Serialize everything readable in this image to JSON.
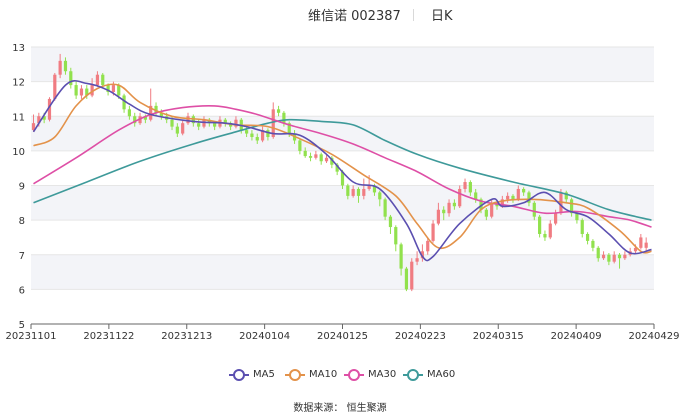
{
  "title": {
    "main": "维信诺 002387",
    "period": "日K"
  },
  "source": "数据来源：   恒生聚源",
  "colors": {
    "up": "#f07c82",
    "down": "#91e14d",
    "MA5": "#5b4fb0",
    "MA10": "#e3924a",
    "MA30": "#de4fa6",
    "MA60": "#3e9a9a",
    "band": "#f3f4f8",
    "grid": "#e6e6e6",
    "axis": "#666666"
  },
  "chart_data": {
    "type": "candlestick",
    "x_ticks": [
      "20231101",
      "20231122",
      "20231213",
      "20240104",
      "20240125",
      "20240223",
      "20240315",
      "20240409",
      "20240429"
    ],
    "y_ticks": [
      5,
      6,
      7,
      8,
      9,
      10,
      11,
      12,
      13
    ],
    "ylim": [
      5,
      13
    ],
    "n_days": 116,
    "legend": [
      "MA5",
      "MA10",
      "MA30",
      "MA60"
    ],
    "candles": [
      [
        10.6,
        10.8,
        11.05,
        10.55
      ],
      [
        10.8,
        11.0,
        11.1,
        10.7
      ],
      [
        11.0,
        10.9,
        11.1,
        10.8
      ],
      [
        10.9,
        11.5,
        11.55,
        10.85
      ],
      [
        11.5,
        12.2,
        12.25,
        11.45
      ],
      [
        12.2,
        12.6,
        12.8,
        12.1
      ],
      [
        12.6,
        12.3,
        12.7,
        12.2
      ],
      [
        12.3,
        11.9,
        12.4,
        11.8
      ],
      [
        11.9,
        11.6,
        12.0,
        11.5
      ],
      [
        11.6,
        11.8,
        11.9,
        11.5
      ],
      [
        11.8,
        11.6,
        11.9,
        11.5
      ],
      [
        11.6,
        11.9,
        12.1,
        11.55
      ],
      [
        11.9,
        12.2,
        12.3,
        11.85
      ],
      [
        12.2,
        11.9,
        12.25,
        11.8
      ],
      [
        11.9,
        11.7,
        11.95,
        11.6
      ],
      [
        11.7,
        11.9,
        12.0,
        11.6
      ],
      [
        11.9,
        11.6,
        11.95,
        11.5
      ],
      [
        11.6,
        11.2,
        11.65,
        11.1
      ],
      [
        11.2,
        11.0,
        11.3,
        10.9
      ],
      [
        11.0,
        10.8,
        11.1,
        10.7
      ],
      [
        10.8,
        11.0,
        11.1,
        10.75
      ],
      [
        11.0,
        10.9,
        11.05,
        10.8
      ],
      [
        10.9,
        11.3,
        11.8,
        10.85
      ],
      [
        11.3,
        11.1,
        11.4,
        11.0
      ],
      [
        11.1,
        11.0,
        11.2,
        10.9
      ],
      [
        11.0,
        10.9,
        11.1,
        10.8
      ],
      [
        10.9,
        10.7,
        11.0,
        10.6
      ],
      [
        10.7,
        10.5,
        10.8,
        10.4
      ],
      [
        10.5,
        10.8,
        10.9,
        10.45
      ],
      [
        10.8,
        11.0,
        11.1,
        10.75
      ],
      [
        11.0,
        10.8,
        11.05,
        10.7
      ],
      [
        10.8,
        10.7,
        10.9,
        10.6
      ],
      [
        10.7,
        10.9,
        11.0,
        10.65
      ],
      [
        10.9,
        10.8,
        10.95,
        10.7
      ],
      [
        10.8,
        10.7,
        10.85,
        10.6
      ],
      [
        10.7,
        10.9,
        11.0,
        10.65
      ],
      [
        10.9,
        10.8,
        10.95,
        10.7
      ],
      [
        10.8,
        10.7,
        10.85,
        10.6
      ],
      [
        10.7,
        10.9,
        11.0,
        10.65
      ],
      [
        10.9,
        10.6,
        10.95,
        10.5
      ],
      [
        10.6,
        10.5,
        10.7,
        10.4
      ],
      [
        10.5,
        10.4,
        10.6,
        10.3
      ],
      [
        10.4,
        10.3,
        10.5,
        10.2
      ],
      [
        10.3,
        10.6,
        10.7,
        10.25
      ],
      [
        10.6,
        10.4,
        10.65,
        10.3
      ],
      [
        10.4,
        11.2,
        11.4,
        10.35
      ],
      [
        11.2,
        11.1,
        11.3,
        11.0
      ],
      [
        11.1,
        10.8,
        11.15,
        10.7
      ],
      [
        10.8,
        10.5,
        10.85,
        10.4
      ],
      [
        10.5,
        10.3,
        10.6,
        10.2
      ],
      [
        10.3,
        10.0,
        10.35,
        9.9
      ],
      [
        10.0,
        9.85,
        10.1,
        9.8
      ],
      [
        9.85,
        9.8,
        9.95,
        9.7
      ],
      [
        9.8,
        9.9,
        10.0,
        9.75
      ],
      [
        9.9,
        9.7,
        9.95,
        9.6
      ],
      [
        9.7,
        9.8,
        9.9,
        9.65
      ],
      [
        9.8,
        9.6,
        9.85,
        9.5
      ],
      [
        9.6,
        9.4,
        9.65,
        9.3
      ],
      [
        9.4,
        9.0,
        9.45,
        8.9
      ],
      [
        9.0,
        8.7,
        9.05,
        8.6
      ],
      [
        8.7,
        8.9,
        9.0,
        8.65
      ],
      [
        8.9,
        8.7,
        8.95,
        8.5
      ],
      [
        8.7,
        8.9,
        9.2,
        8.6
      ],
      [
        8.9,
        9.0,
        9.3,
        8.85
      ],
      [
        9.0,
        8.8,
        9.05,
        8.7
      ],
      [
        8.8,
        8.6,
        8.85,
        8.4
      ],
      [
        8.6,
        8.1,
        8.65,
        8.0
      ],
      [
        8.1,
        7.8,
        8.15,
        7.6
      ],
      [
        7.8,
        7.3,
        7.85,
        7.1
      ],
      [
        7.3,
        6.6,
        7.35,
        6.4
      ],
      [
        6.6,
        6.0,
        6.65,
        5.95
      ],
      [
        6.0,
        6.8,
        6.9,
        5.95
      ],
      [
        6.8,
        6.9,
        7.1,
        6.7
      ],
      [
        6.9,
        7.1,
        7.3,
        6.8
      ],
      [
        7.1,
        7.4,
        7.5,
        7.0
      ],
      [
        7.4,
        7.9,
        8.0,
        7.35
      ],
      [
        7.9,
        8.3,
        8.5,
        7.85
      ],
      [
        8.3,
        8.2,
        8.4,
        8.0
      ],
      [
        8.2,
        8.5,
        8.6,
        8.1
      ],
      [
        8.5,
        8.4,
        8.6,
        8.3
      ],
      [
        8.4,
        8.9,
        9.0,
        8.35
      ],
      [
        8.9,
        9.1,
        9.2,
        8.8
      ],
      [
        9.1,
        8.8,
        9.15,
        8.7
      ],
      [
        8.8,
        8.6,
        8.9,
        8.5
      ],
      [
        8.6,
        8.3,
        8.65,
        8.2
      ],
      [
        8.3,
        8.1,
        8.35,
        8.0
      ],
      [
        8.1,
        8.5,
        8.6,
        8.05
      ],
      [
        8.5,
        8.4,
        8.55,
        8.3
      ],
      [
        8.4,
        8.6,
        8.7,
        8.35
      ],
      [
        8.6,
        8.7,
        8.8,
        8.5
      ],
      [
        8.7,
        8.6,
        8.75,
        8.5
      ],
      [
        8.6,
        8.9,
        9.0,
        8.55
      ],
      [
        8.9,
        8.8,
        8.95,
        8.7
      ],
      [
        8.8,
        8.5,
        8.85,
        8.4
      ],
      [
        8.5,
        8.1,
        8.55,
        8.0
      ],
      [
        8.1,
        7.6,
        8.15,
        7.5
      ],
      [
        7.6,
        7.5,
        7.7,
        7.4
      ],
      [
        7.5,
        7.9,
        8.0,
        7.45
      ],
      [
        7.9,
        8.2,
        8.3,
        7.85
      ],
      [
        8.2,
        8.8,
        8.9,
        8.15
      ],
      [
        8.8,
        8.6,
        8.85,
        8.5
      ],
      [
        8.6,
        8.2,
        8.65,
        8.1
      ],
      [
        8.2,
        8.0,
        8.25,
        7.9
      ],
      [
        8.0,
        7.6,
        8.05,
        7.5
      ],
      [
        7.6,
        7.4,
        7.65,
        7.3
      ],
      [
        7.4,
        7.2,
        7.45,
        7.1
      ],
      [
        7.2,
        6.9,
        7.25,
        6.8
      ],
      [
        6.9,
        7.0,
        7.1,
        6.85
      ],
      [
        7.0,
        6.8,
        7.05,
        6.7
      ],
      [
        6.8,
        7.0,
        7.1,
        6.75
      ],
      [
        7.0,
        6.9,
        7.05,
        6.6
      ],
      [
        6.9,
        7.0,
        7.1,
        6.85
      ],
      [
        7.0,
        7.1,
        7.2,
        6.95
      ],
      [
        7.1,
        7.2,
        7.3,
        7.05
      ],
      [
        7.2,
        7.5,
        7.6,
        7.15
      ],
      [
        7.2,
        7.35,
        7.5,
        7.1
      ]
    ],
    "ma": {
      "MA5": [
        [
          0,
          10.55
        ],
        [
          6,
          11.9
        ],
        [
          10,
          11.95
        ],
        [
          14,
          11.75
        ],
        [
          18,
          11.35
        ],
        [
          22,
          11.05
        ],
        [
          30,
          10.85
        ],
        [
          36,
          10.8
        ],
        [
          40,
          10.7
        ],
        [
          45,
          10.5
        ],
        [
          50,
          10.45
        ],
        [
          55,
          9.9
        ],
        [
          60,
          9.1
        ],
        [
          65,
          8.9
        ],
        [
          70,
          7.9
        ],
        [
          73,
          6.95
        ],
        [
          75,
          6.95
        ],
        [
          80,
          7.9
        ],
        [
          86,
          8.6
        ],
        [
          88,
          8.4
        ],
        [
          92,
          8.5
        ],
        [
          96,
          8.8
        ],
        [
          100,
          8.3
        ],
        [
          104,
          8.1
        ],
        [
          108,
          7.6
        ],
        [
          112,
          7.05
        ],
        [
          116,
          7.15
        ]
      ],
      "MA10": [
        [
          0,
          10.15
        ],
        [
          4,
          10.4
        ],
        [
          8,
          11.3
        ],
        [
          12,
          11.8
        ],
        [
          16,
          11.9
        ],
        [
          20,
          11.4
        ],
        [
          26,
          11.0
        ],
        [
          32,
          10.9
        ],
        [
          38,
          10.75
        ],
        [
          44,
          10.7
        ],
        [
          50,
          10.35
        ],
        [
          56,
          9.9
        ],
        [
          62,
          9.3
        ],
        [
          68,
          8.7
        ],
        [
          72,
          7.9
        ],
        [
          76,
          7.2
        ],
        [
          80,
          7.5
        ],
        [
          84,
          8.3
        ],
        [
          88,
          8.55
        ],
        [
          94,
          8.6
        ],
        [
          100,
          8.5
        ],
        [
          104,
          8.35
        ],
        [
          110,
          7.7
        ],
        [
          114,
          7.1
        ],
        [
          116,
          7.1
        ]
      ],
      "MA30": [
        [
          0,
          9.05
        ],
        [
          8,
          9.8
        ],
        [
          16,
          10.6
        ],
        [
          22,
          11.05
        ],
        [
          28,
          11.25
        ],
        [
          34,
          11.3
        ],
        [
          38,
          11.2
        ],
        [
          42,
          11.05
        ],
        [
          48,
          10.75
        ],
        [
          54,
          10.5
        ],
        [
          60,
          10.2
        ],
        [
          66,
          9.8
        ],
        [
          72,
          9.4
        ],
        [
          78,
          8.9
        ],
        [
          84,
          8.55
        ],
        [
          90,
          8.4
        ],
        [
          96,
          8.2
        ],
        [
          102,
          8.25
        ],
        [
          108,
          8.1
        ],
        [
          112,
          8.0
        ],
        [
          116,
          7.8
        ]
      ],
      "MA60": [
        [
          0,
          8.5
        ],
        [
          10,
          9.1
        ],
        [
          20,
          9.7
        ],
        [
          30,
          10.2
        ],
        [
          38,
          10.55
        ],
        [
          44,
          10.8
        ],
        [
          48,
          10.9
        ],
        [
          54,
          10.85
        ],
        [
          60,
          10.75
        ],
        [
          66,
          10.3
        ],
        [
          72,
          9.9
        ],
        [
          80,
          9.5
        ],
        [
          90,
          9.1
        ],
        [
          100,
          8.75
        ],
        [
          108,
          8.3
        ],
        [
          116,
          8.0
        ]
      ]
    }
  }
}
